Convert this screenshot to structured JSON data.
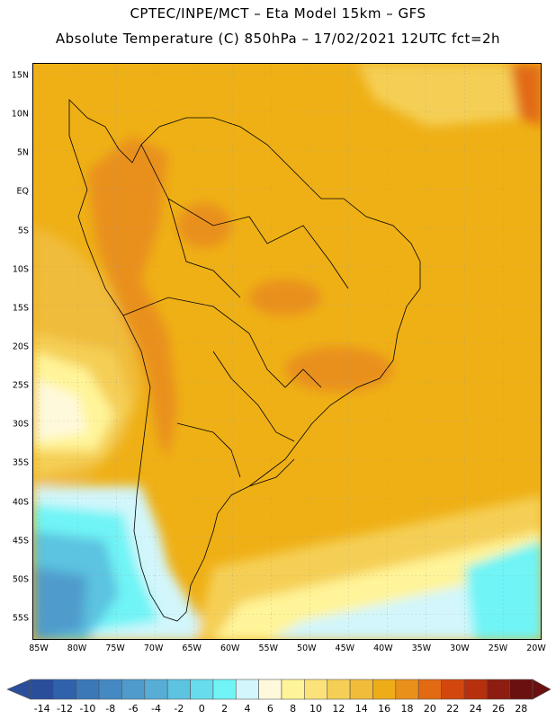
{
  "header": {
    "line1": "CPTEC/INPE/MCT –   Eta Model 15km – GFS",
    "line2": "Absolute Temperature (C) 850hPa – 17/02/2021 12UTC fct=2h"
  },
  "map": {
    "lat_labels": [
      "15N",
      "10N",
      "5N",
      "EQ",
      "5S",
      "10S",
      "15S",
      "20S",
      "25S",
      "30S",
      "35S",
      "40S",
      "45S",
      "50S",
      "55S"
    ],
    "lon_labels": [
      "85W",
      "80W",
      "75W",
      "70W",
      "65W",
      "60W",
      "55W",
      "50W",
      "45W",
      "40W",
      "35W",
      "30W",
      "25W",
      "20W"
    ],
    "lat_range": [
      -58,
      17
    ],
    "lon_range": [
      -86,
      -20
    ]
  },
  "colorbar": {
    "labels": [
      "-14",
      "-12",
      "-10",
      "-8",
      "-6",
      "-4",
      "-2",
      "0",
      "2",
      "4",
      "6",
      "8",
      "10",
      "12",
      "14",
      "16",
      "18",
      "20",
      "22",
      "24",
      "26",
      "28"
    ],
    "colors": [
      "#2a4e9a",
      "#2f62aa",
      "#3a78b8",
      "#4589c2",
      "#4f9bcc",
      "#57add6",
      "#5cc3e0",
      "#66dcec",
      "#70f4f6",
      "#d2f6fb",
      "#fff9dc",
      "#fff499",
      "#fbe27a",
      "#f5cf55",
      "#f0bc3a",
      "#eeac18",
      "#e9901a",
      "#e26a12",
      "#d2470d",
      "#b7300d",
      "#8c1d10",
      "#6b1010"
    ]
  }
}
